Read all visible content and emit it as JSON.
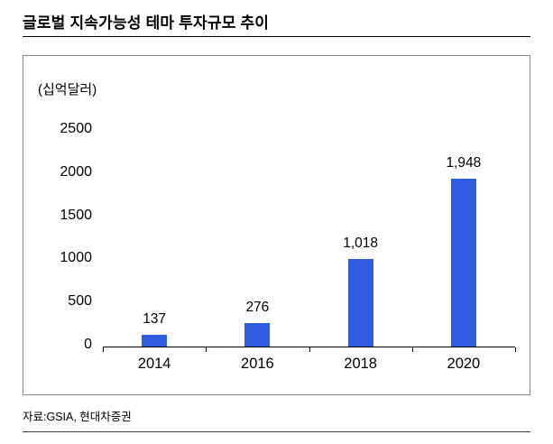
{
  "page": {
    "title": "글로벌 지속가능성 테마 투자규모 추이",
    "source": "자료:GSIA, 현대차증권"
  },
  "chart_data": {
    "type": "bar",
    "title": "글로벌 지속가능성 테마 투자규모 추이",
    "unit_label": "(십억달러)",
    "categories": [
      "2014",
      "2016",
      "2018",
      "2020"
    ],
    "values": [
      137,
      276,
      1018,
      1948
    ],
    "value_labels": [
      "137",
      "276",
      "1,018",
      "1,948"
    ],
    "ylim": [
      0,
      2500
    ],
    "yticks": [
      0,
      500,
      1000,
      1500,
      2000,
      2500
    ],
    "ytick_labels": [
      "0",
      "500",
      "1000",
      "1500",
      "2000",
      "2500"
    ],
    "xlabel": "",
    "ylabel": "",
    "grid": false,
    "legend": false,
    "bar_color": "#2f5ce0",
    "text_color": "#000000"
  }
}
